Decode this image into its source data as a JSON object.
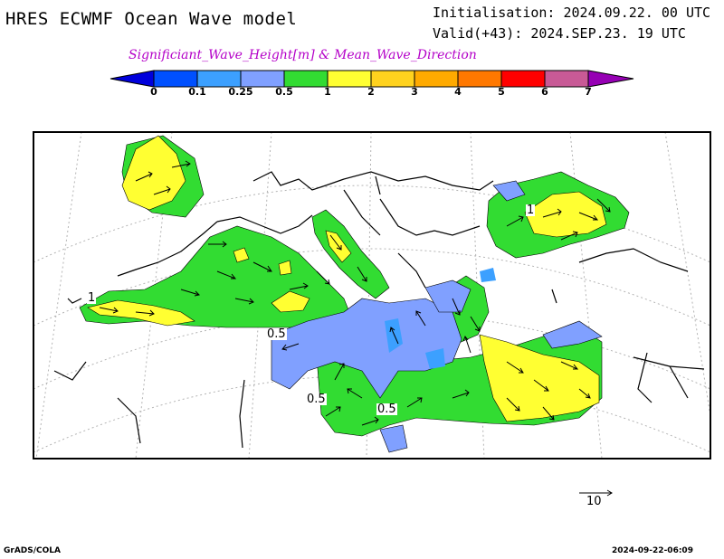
{
  "header": {
    "title": "HRES ECWMF Ocean Wave model",
    "initialisation": "Initialisation: 2024.09.22. 00 UTC",
    "valid": "Valid(+43): 2024.SEP.23. 19 UTC",
    "subtitle": "Significiant_Wave_Height[m] & Mean_Wave_Direction"
  },
  "legend": {
    "ticks": [
      "0",
      "0.1",
      "0.25",
      "0.5",
      "1",
      "2",
      "3",
      "4",
      "5",
      "6",
      "7"
    ],
    "colors": [
      "#0000dc",
      "#0050ff",
      "#3ca0ff",
      "#80a0ff",
      "#32dc32",
      "#ffff32",
      "#ffd21e",
      "#ffaa00",
      "#ff7800",
      "#ff0000",
      "#c85a96",
      "#9600b4"
    ]
  },
  "map": {
    "region": "Mediterranean and Black Sea",
    "contour_labels": [
      "1",
      "0.5",
      "0.5",
      "0.5",
      "1"
    ]
  },
  "vector_scale": {
    "label": "10"
  },
  "footer": {
    "left": "GrADS/COLA",
    "right": "2024-09-22-06:09"
  }
}
